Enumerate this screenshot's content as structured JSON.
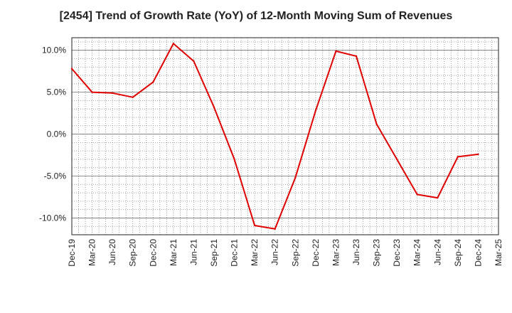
{
  "chart_data": {
    "type": "line",
    "title": "[2454]  Trend of Growth Rate (YoY) of 12-Month Moving Sum of Revenues",
    "xlabel": "",
    "ylabel": "",
    "x_ticks": [
      "Dec-19",
      "Mar-20",
      "Jun-20",
      "Sep-20",
      "Dec-20",
      "Mar-21",
      "Jun-21",
      "Sep-21",
      "Dec-21",
      "Mar-22",
      "Jun-22",
      "Sep-22",
      "Dec-22",
      "Mar-23",
      "Jun-23",
      "Sep-23",
      "Dec-23",
      "Mar-24",
      "Jun-24",
      "Sep-24",
      "Dec-24",
      "Mar-25"
    ],
    "y_ticks": [
      {
        "value": 10,
        "label": "10.0%"
      },
      {
        "value": 5,
        "label": "5.0%"
      },
      {
        "value": 0,
        "label": "0.0%"
      },
      {
        "value": -5,
        "label": "-5.0%"
      },
      {
        "value": -10,
        "label": "-10.0%"
      }
    ],
    "ylim": [
      -12,
      11.5
    ],
    "grid": true,
    "series": [
      {
        "color": "#e00000",
        "x": [
          "Dec-19",
          "Mar-20",
          "Jun-20",
          "Sep-20",
          "Dec-20",
          "Mar-21",
          "Jun-21",
          "Sep-21",
          "Dec-21",
          "Mar-22",
          "Jun-22",
          "Sep-22",
          "Dec-22",
          "Mar-23",
          "Jun-23",
          "Sep-23",
          "Dec-23",
          "Mar-24",
          "Jun-24",
          "Sep-24",
          "Dec-24"
        ],
        "values": [
          7.8,
          5.0,
          4.9,
          4.4,
          6.2,
          10.8,
          8.7,
          3.2,
          -3.0,
          -10.9,
          -11.3,
          -5.2,
          2.8,
          9.9,
          9.3,
          1.2,
          -3.0,
          -7.2,
          -7.6,
          -2.7,
          -2.4
        ]
      }
    ]
  }
}
